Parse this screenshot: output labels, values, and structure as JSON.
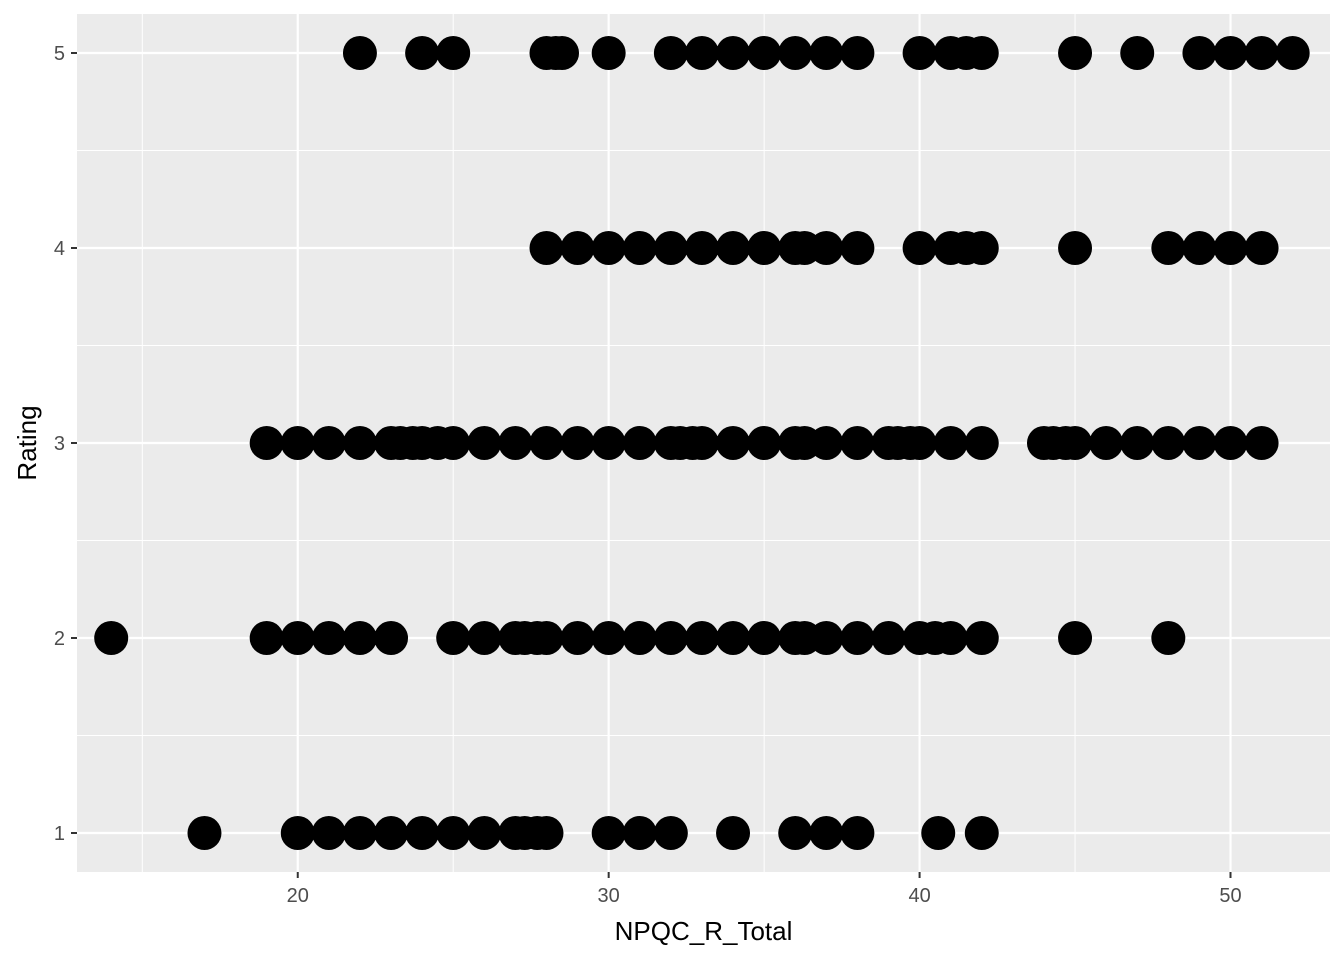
{
  "chart_data": {
    "type": "scatter",
    "xlabel": "NPQC_R_Total",
    "ylabel": "Rating",
    "xlim": [
      12.9,
      53.2
    ],
    "ylim": [
      0.8,
      5.2
    ],
    "x_ticks": [
      20,
      30,
      40,
      50
    ],
    "y_ticks": [
      1,
      2,
      3,
      4,
      5
    ],
    "grid": true,
    "legend": "none",
    "colors": {
      "panel": "#ebebeb",
      "grid": "#ffffff",
      "point": "#000000"
    },
    "series": [
      {
        "points": [
          {
            "x": 22,
            "y": 5
          },
          {
            "x": 24,
            "y": 5
          },
          {
            "x": 25,
            "y": 5
          },
          {
            "x": 28,
            "y": 5
          },
          {
            "x": 28.3,
            "y": 5
          },
          {
            "x": 28.5,
            "y": 5
          },
          {
            "x": 30,
            "y": 5
          },
          {
            "x": 32,
            "y": 5
          },
          {
            "x": 33,
            "y": 5
          },
          {
            "x": 34,
            "y": 5
          },
          {
            "x": 35,
            "y": 5
          },
          {
            "x": 36,
            "y": 5
          },
          {
            "x": 37,
            "y": 5
          },
          {
            "x": 38,
            "y": 5
          },
          {
            "x": 40,
            "y": 5
          },
          {
            "x": 41,
            "y": 5
          },
          {
            "x": 41.5,
            "y": 5
          },
          {
            "x": 42,
            "y": 5
          },
          {
            "x": 45,
            "y": 5
          },
          {
            "x": 47,
            "y": 5
          },
          {
            "x": 49,
            "y": 5
          },
          {
            "x": 50,
            "y": 5
          },
          {
            "x": 51,
            "y": 5
          },
          {
            "x": 52,
            "y": 5
          },
          {
            "x": 28,
            "y": 4
          },
          {
            "x": 29,
            "y": 4
          },
          {
            "x": 30,
            "y": 4
          },
          {
            "x": 31,
            "y": 4
          },
          {
            "x": 32,
            "y": 4
          },
          {
            "x": 33,
            "y": 4
          },
          {
            "x": 34,
            "y": 4
          },
          {
            "x": 35,
            "y": 4
          },
          {
            "x": 36,
            "y": 4
          },
          {
            "x": 36.3,
            "y": 4
          },
          {
            "x": 37,
            "y": 4
          },
          {
            "x": 38,
            "y": 4
          },
          {
            "x": 40,
            "y": 4
          },
          {
            "x": 41,
            "y": 4
          },
          {
            "x": 41.5,
            "y": 4
          },
          {
            "x": 42,
            "y": 4
          },
          {
            "x": 45,
            "y": 4
          },
          {
            "x": 48,
            "y": 4
          },
          {
            "x": 49,
            "y": 4
          },
          {
            "x": 50,
            "y": 4
          },
          {
            "x": 51,
            "y": 4
          },
          {
            "x": 19,
            "y": 3
          },
          {
            "x": 20,
            "y": 3
          },
          {
            "x": 21,
            "y": 3
          },
          {
            "x": 22,
            "y": 3
          },
          {
            "x": 23,
            "y": 3
          },
          {
            "x": 23.3,
            "y": 3
          },
          {
            "x": 23.7,
            "y": 3
          },
          {
            "x": 24,
            "y": 3
          },
          {
            "x": 24.5,
            "y": 3
          },
          {
            "x": 25,
            "y": 3
          },
          {
            "x": 26,
            "y": 3
          },
          {
            "x": 27,
            "y": 3
          },
          {
            "x": 28,
            "y": 3
          },
          {
            "x": 29,
            "y": 3
          },
          {
            "x": 30,
            "y": 3
          },
          {
            "x": 31,
            "y": 3
          },
          {
            "x": 32,
            "y": 3
          },
          {
            "x": 32.3,
            "y": 3
          },
          {
            "x": 32.7,
            "y": 3
          },
          {
            "x": 33,
            "y": 3
          },
          {
            "x": 34,
            "y": 3
          },
          {
            "x": 35,
            "y": 3
          },
          {
            "x": 36,
            "y": 3
          },
          {
            "x": 36.3,
            "y": 3
          },
          {
            "x": 37,
            "y": 3
          },
          {
            "x": 38,
            "y": 3
          },
          {
            "x": 39,
            "y": 3
          },
          {
            "x": 39.3,
            "y": 3
          },
          {
            "x": 39.7,
            "y": 3
          },
          {
            "x": 40,
            "y": 3
          },
          {
            "x": 41,
            "y": 3
          },
          {
            "x": 42,
            "y": 3
          },
          {
            "x": 44,
            "y": 3
          },
          {
            "x": 44.3,
            "y": 3
          },
          {
            "x": 44.7,
            "y": 3
          },
          {
            "x": 45,
            "y": 3
          },
          {
            "x": 46,
            "y": 3
          },
          {
            "x": 47,
            "y": 3
          },
          {
            "x": 48,
            "y": 3
          },
          {
            "x": 49,
            "y": 3
          },
          {
            "x": 50,
            "y": 3
          },
          {
            "x": 51,
            "y": 3
          },
          {
            "x": 14,
            "y": 2
          },
          {
            "x": 19,
            "y": 2
          },
          {
            "x": 20,
            "y": 2
          },
          {
            "x": 21,
            "y": 2
          },
          {
            "x": 22,
            "y": 2
          },
          {
            "x": 23,
            "y": 2
          },
          {
            "x": 25,
            "y": 2
          },
          {
            "x": 26,
            "y": 2
          },
          {
            "x": 27,
            "y": 2
          },
          {
            "x": 27.3,
            "y": 2
          },
          {
            "x": 27.7,
            "y": 2
          },
          {
            "x": 28,
            "y": 2
          },
          {
            "x": 29,
            "y": 2
          },
          {
            "x": 30,
            "y": 2
          },
          {
            "x": 31,
            "y": 2
          },
          {
            "x": 32,
            "y": 2
          },
          {
            "x": 33,
            "y": 2
          },
          {
            "x": 34,
            "y": 2
          },
          {
            "x": 35,
            "y": 2
          },
          {
            "x": 36,
            "y": 2
          },
          {
            "x": 36.3,
            "y": 2
          },
          {
            "x": 37,
            "y": 2
          },
          {
            "x": 38,
            "y": 2
          },
          {
            "x": 39,
            "y": 2
          },
          {
            "x": 40,
            "y": 2
          },
          {
            "x": 40.5,
            "y": 2
          },
          {
            "x": 41,
            "y": 2
          },
          {
            "x": 42,
            "y": 2
          },
          {
            "x": 45,
            "y": 2
          },
          {
            "x": 48,
            "y": 2
          },
          {
            "x": 17,
            "y": 1
          },
          {
            "x": 20,
            "y": 1
          },
          {
            "x": 21,
            "y": 1
          },
          {
            "x": 22,
            "y": 1
          },
          {
            "x": 23,
            "y": 1
          },
          {
            "x": 24,
            "y": 1
          },
          {
            "x": 25,
            "y": 1
          },
          {
            "x": 26,
            "y": 1
          },
          {
            "x": 27,
            "y": 1
          },
          {
            "x": 27.3,
            "y": 1
          },
          {
            "x": 27.7,
            "y": 1
          },
          {
            "x": 28,
            "y": 1
          },
          {
            "x": 30,
            "y": 1
          },
          {
            "x": 31,
            "y": 1
          },
          {
            "x": 32,
            "y": 1
          },
          {
            "x": 34,
            "y": 1
          },
          {
            "x": 36,
            "y": 1
          },
          {
            "x": 37,
            "y": 1
          },
          {
            "x": 38,
            "y": 1
          },
          {
            "x": 40.6,
            "y": 1
          },
          {
            "x": 42,
            "y": 1
          }
        ]
      }
    ]
  }
}
